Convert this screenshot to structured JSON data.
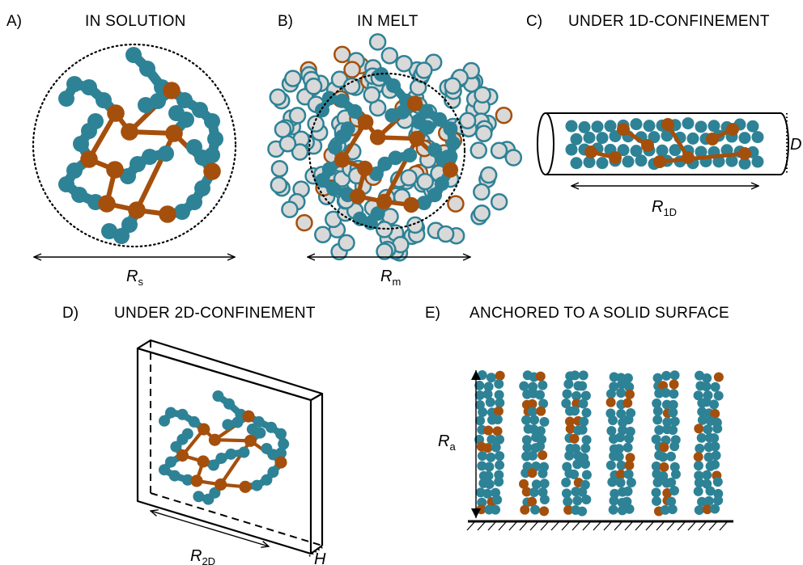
{
  "colors": {
    "monomer": "#2e8296",
    "crosslink": "#a54f0c",
    "melt_fill": "#d9d9d9",
    "line": "#000000"
  },
  "panels": [
    {
      "label": "A)",
      "title": "IN SOLUTION",
      "size_symbol": "R",
      "size_subscript": "s"
    },
    {
      "label": "B)",
      "title": "IN MELT",
      "size_symbol": "R",
      "size_subscript": "m"
    },
    {
      "label": "C)",
      "title": "UNDER 1D-CONFINEMENT",
      "size_symbol": "R",
      "size_subscript": "1D",
      "extra_symbol": "D"
    },
    {
      "label": "D)",
      "title": "UNDER 2D-CONFINEMENT",
      "size_symbol": "R",
      "size_subscript": "2D",
      "extra_symbol": "H"
    },
    {
      "label": "E)",
      "title": "ANCHORED TO A SOLID SURFACE",
      "size_symbol": "R",
      "size_subscript": "a"
    }
  ]
}
